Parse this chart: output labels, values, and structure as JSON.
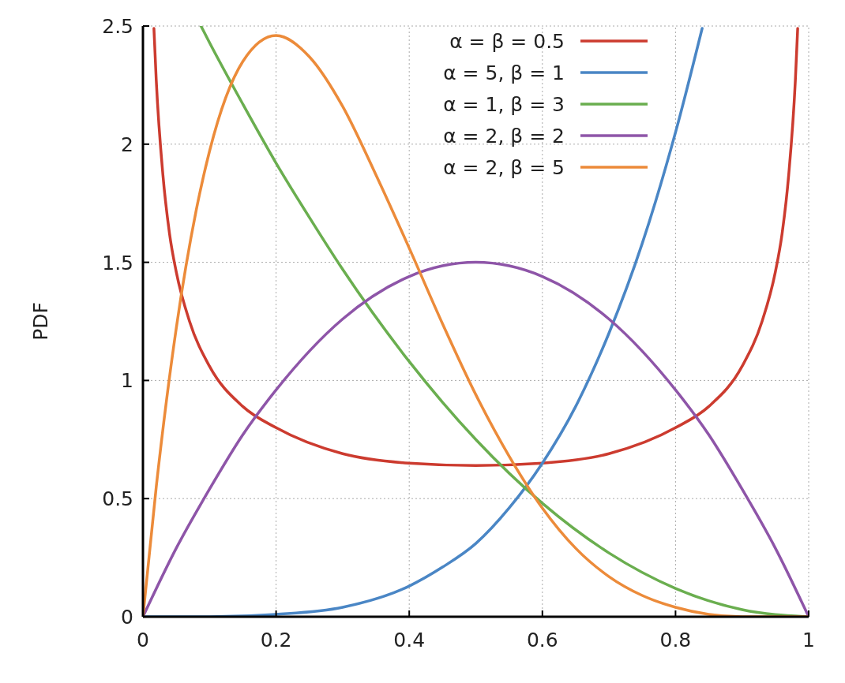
{
  "chart_data": {
    "type": "line",
    "ylabel": "PDF",
    "xlim": [
      0,
      1
    ],
    "ylim": [
      0,
      2.5
    ],
    "xticks": [
      0,
      0.2,
      0.4,
      0.6,
      0.8,
      1
    ],
    "yticks": [
      0,
      0.5,
      1,
      1.5,
      2,
      2.5
    ],
    "grid": true,
    "legend": "top right",
    "line_style": "solid",
    "series": [
      {
        "name": "α = β = 0.5",
        "color": "#cc3b2f",
        "x": [
          0.0165,
          0.02,
          0.03,
          0.04,
          0.05,
          0.07,
          0.1,
          0.15,
          0.2,
          0.3,
          0.4,
          0.5,
          0.6,
          0.7,
          0.8,
          0.85,
          0.9,
          0.93,
          0.95,
          0.96,
          0.97,
          0.98,
          0.9835
        ],
        "values": [
          2.49,
          2.27,
          1.87,
          1.62,
          1.46,
          1.25,
          1.06,
          0.89,
          0.8,
          0.69,
          0.65,
          0.64,
          0.65,
          0.69,
          0.8,
          0.89,
          1.06,
          1.25,
          1.46,
          1.62,
          1.87,
          2.27,
          2.49
        ]
      },
      {
        "name": "α = 5, β = 1",
        "color": "#4a86c5",
        "x": [
          0,
          0.1,
          0.2,
          0.3,
          0.4,
          0.45,
          0.5,
          0.55,
          0.6,
          0.65,
          0.7,
          0.75,
          0.8,
          0.84
        ],
        "values": [
          0,
          0,
          0.01,
          0.04,
          0.13,
          0.21,
          0.31,
          0.46,
          0.65,
          0.89,
          1.2,
          1.58,
          2.05,
          2.49
        ]
      },
      {
        "name": "α = 1, β = 3",
        "color": "#6aae4f",
        "x": [
          0.0872,
          0.1,
          0.15,
          0.2,
          0.25,
          0.3,
          0.4,
          0.5,
          0.6,
          0.7,
          0.8,
          0.9,
          1
        ],
        "values": [
          2.5,
          2.43,
          2.17,
          1.92,
          1.69,
          1.47,
          1.08,
          0.75,
          0.48,
          0.27,
          0.12,
          0.03,
          0
        ]
      },
      {
        "name": "α = 2, β = 2",
        "color": "#8e55a8",
        "x": [
          0,
          0.05,
          0.1,
          0.15,
          0.2,
          0.3,
          0.4,
          0.5,
          0.6,
          0.7,
          0.8,
          0.85,
          0.9,
          0.95,
          1
        ],
        "values": [
          0,
          0.29,
          0.54,
          0.77,
          0.96,
          1.26,
          1.44,
          1.5,
          1.44,
          1.26,
          0.96,
          0.77,
          0.54,
          0.29,
          0
        ]
      },
      {
        "name": "α = 2, β = 5",
        "color": "#ec8b3a",
        "x": [
          0,
          0.02,
          0.05,
          0.08,
          0.1,
          0.15,
          0.2,
          0.25,
          0.3,
          0.35,
          0.4,
          0.45,
          0.5,
          0.55,
          0.6,
          0.65,
          0.7,
          0.75,
          0.8,
          0.85,
          0.9,
          1
        ],
        "values": [
          0,
          0.55,
          1.22,
          1.72,
          1.97,
          2.35,
          2.46,
          2.37,
          2.16,
          1.87,
          1.56,
          1.24,
          0.94,
          0.68,
          0.46,
          0.29,
          0.17,
          0.09,
          0.04,
          0.01,
          0,
          0
        ]
      }
    ]
  }
}
